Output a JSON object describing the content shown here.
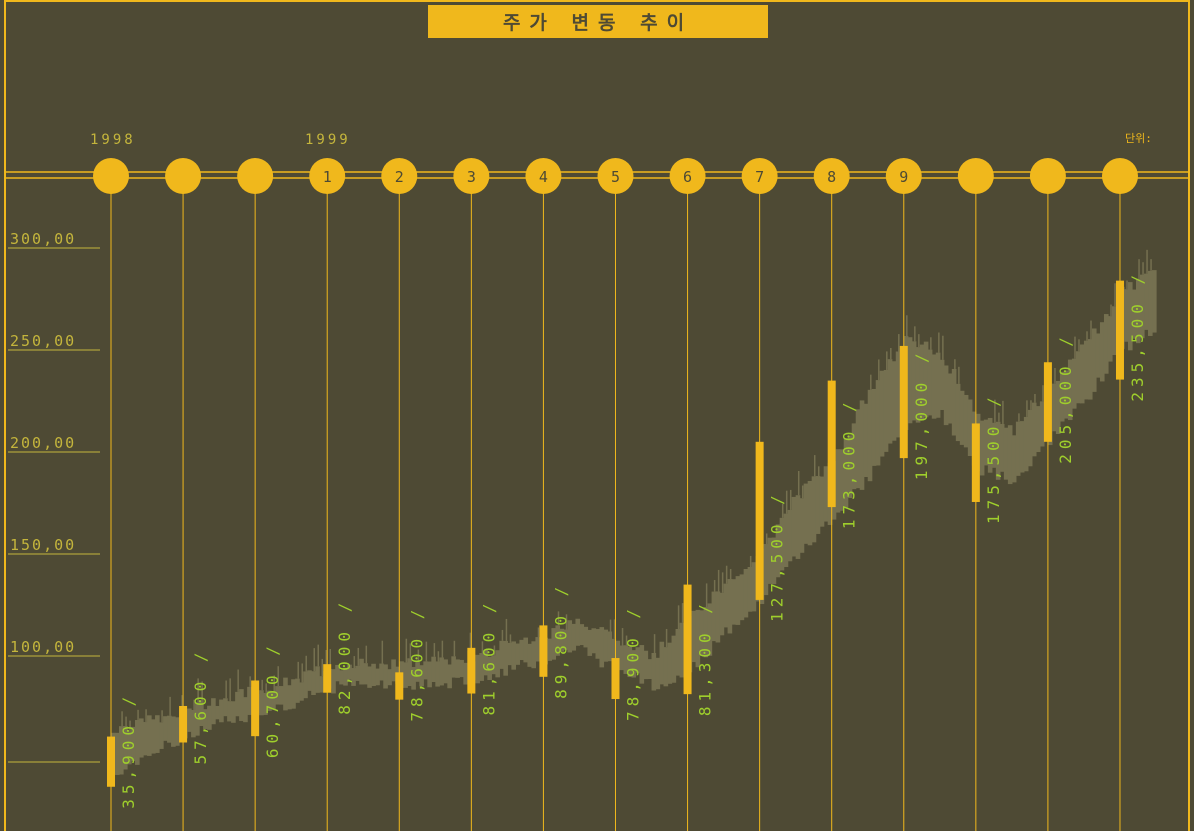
{
  "title": "주가 변동 추이",
  "unit_label": "단위:",
  "year_labels": [
    "1998",
    "1999"
  ],
  "colors": {
    "background": "#4e4a34",
    "accent": "#f0b81c",
    "label_text": "#9fcf2c",
    "axis_text": "#c4b53c",
    "price_band": "#757050"
  },
  "chart_data": {
    "type": "bar",
    "description_note": "",
    "y_ticks": [
      "300,00",
      "250,00",
      "200,00",
      "150,00",
      "100,00"
    ],
    "y_tick_values": [
      300,
      250,
      200,
      150,
      100
    ],
    "ylim": [
      30,
      320
    ],
    "grid": false,
    "periods": [
      {
        "circle_label": "",
        "low": 35.9,
        "high": 60.5,
        "label": "35,900 /"
      },
      {
        "circle_label": "",
        "low": 57.6,
        "high": 75.5,
        "label": "57,600 /"
      },
      {
        "circle_label": "",
        "low": 60.7,
        "high": 88.0,
        "label": "60,700 /"
      },
      {
        "circle_label": "1",
        "low": 82.0,
        "high": 96.0,
        "label": "82,000 /"
      },
      {
        "circle_label": "2",
        "low": 78.6,
        "high": 92.0,
        "label": "78,600 /"
      },
      {
        "circle_label": "3",
        "low": 81.6,
        "high": 104.0,
        "label": "81,600 /"
      },
      {
        "circle_label": "4",
        "low": 89.8,
        "high": 115.0,
        "label": "89,800 /"
      },
      {
        "circle_label": "5",
        "low": 78.9,
        "high": 99.0,
        "label": "78,900 /"
      },
      {
        "circle_label": "6",
        "low": 81.3,
        "high": 135.0,
        "label": "81,300 /"
      },
      {
        "circle_label": "7",
        "low": 127.5,
        "high": 205.0,
        "label": "127,500 /"
      },
      {
        "circle_label": "8",
        "low": 173.0,
        "high": 235.0,
        "label": "173,000 /"
      },
      {
        "circle_label": "9",
        "low": 197.0,
        "high": 252.0,
        "label": "197,000 /"
      },
      {
        "circle_label": "",
        "low": 175.5,
        "high": 214.0,
        "label": "175,500 /"
      },
      {
        "circle_label": "",
        "low": 205.0,
        "high": 244.0,
        "label": "205,000 /"
      },
      {
        "circle_label": "",
        "low": 235.5,
        "high": 284.0,
        "label": "235,500 /"
      }
    ],
    "price_band": [
      [
        0,
        42,
        62
      ],
      [
        0.5,
        53,
        68
      ],
      [
        1,
        60,
        74
      ],
      [
        1.5,
        67,
        79
      ],
      [
        2,
        72,
        84
      ],
      [
        2.5,
        77,
        88
      ],
      [
        3,
        84,
        94
      ],
      [
        3.5,
        87,
        97
      ],
      [
        4,
        86,
        96
      ],
      [
        4.5,
        86,
        97
      ],
      [
        5,
        88,
        100
      ],
      [
        5.5,
        94,
        106
      ],
      [
        6,
        98,
        110
      ],
      [
        6.5,
        104,
        118
      ],
      [
        7,
        92,
        108
      ],
      [
        7.5,
        86,
        100
      ],
      [
        8,
        92,
        118
      ],
      [
        8.5,
        112,
        134
      ],
      [
        9,
        128,
        152
      ],
      [
        9.5,
        150,
        178
      ],
      [
        10,
        168,
        196
      ],
      [
        10.5,
        188,
        230
      ],
      [
        11,
        212,
        256
      ],
      [
        11.5,
        218,
        248
      ],
      [
        12,
        192,
        218
      ],
      [
        12.5,
        186,
        210
      ],
      [
        13,
        206,
        232
      ],
      [
        13.5,
        226,
        252
      ],
      [
        14,
        250,
        278
      ],
      [
        14.5,
        262,
        290
      ]
    ]
  }
}
